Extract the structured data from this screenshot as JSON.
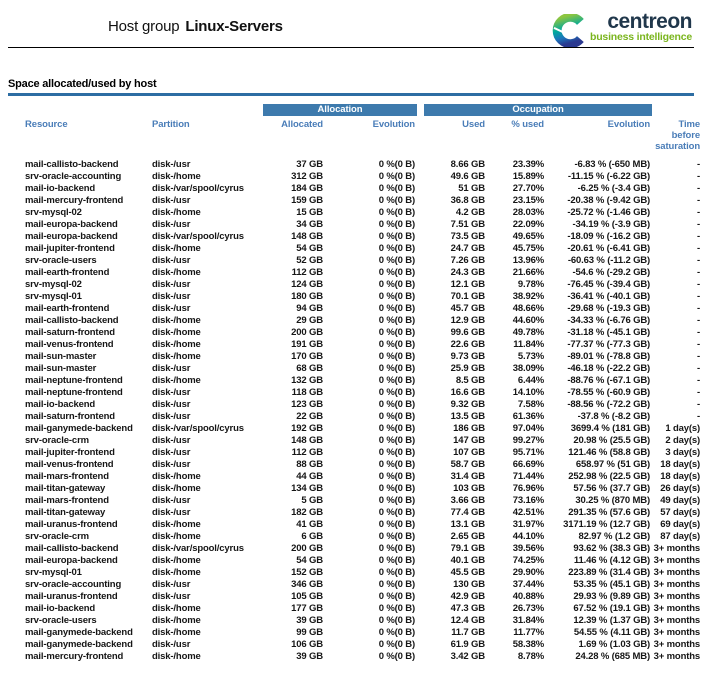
{
  "header": {
    "title_prefix": "Host group",
    "title_name": "Linux-Servers",
    "logo": {
      "brand": "centreon",
      "tagline": "business intelligence"
    }
  },
  "section": {
    "title": "Space allocated/used by host"
  },
  "table": {
    "groups": {
      "allocation": "Allocation",
      "occupation": "Occupation"
    },
    "columns": {
      "resource": "Resource",
      "partition": "Partition",
      "allocated": "Allocated",
      "allocation_evolution": "Evolution",
      "used": "Used",
      "pct_used": "% used",
      "occupation_evolution": "Evolution",
      "time_before_saturation": "Time before saturation"
    },
    "rows": [
      [
        "mail-callisto-backend",
        "disk-/usr",
        "37 GB",
        "0 %(0 B)",
        "8.66 GB",
        "23.39%",
        "-6.83 % (-650 MB)",
        "-"
      ],
      [
        "srv-oracle-accounting",
        "disk-/home",
        "312 GB",
        "0 %(0 B)",
        "49.6 GB",
        "15.89%",
        "-11.15 % (-6.22 GB)",
        "-"
      ],
      [
        "mail-io-backend",
        "disk-/var/spool/cyrus",
        "184 GB",
        "0 %(0 B)",
        "51 GB",
        "27.70%",
        "-6.25 % (-3.4 GB)",
        "-"
      ],
      [
        "mail-mercury-frontend",
        "disk-/usr",
        "159 GB",
        "0 %(0 B)",
        "36.8 GB",
        "23.15%",
        "-20.38 % (-9.42 GB)",
        "-"
      ],
      [
        "srv-mysql-02",
        "disk-/home",
        "15 GB",
        "0 %(0 B)",
        "4.2 GB",
        "28.03%",
        "-25.72 % (-1.46 GB)",
        "-"
      ],
      [
        "mail-europa-backend",
        "disk-/usr",
        "34 GB",
        "0 %(0 B)",
        "7.51 GB",
        "22.09%",
        "-34.19 % (-3.9 GB)",
        "-"
      ],
      [
        "mail-europa-backend",
        "disk-/var/spool/cyrus",
        "148 GB",
        "0 %(0 B)",
        "73.5 GB",
        "49.65%",
        "-18.09 % (-16.2 GB)",
        "-"
      ],
      [
        "mail-jupiter-frontend",
        "disk-/home",
        "54 GB",
        "0 %(0 B)",
        "24.7 GB",
        "45.75%",
        "-20.61 % (-6.41 GB)",
        "-"
      ],
      [
        "srv-oracle-users",
        "disk-/usr",
        "52 GB",
        "0 %(0 B)",
        "7.26 GB",
        "13.96%",
        "-60.63 % (-11.2 GB)",
        "-"
      ],
      [
        "mail-earth-frontend",
        "disk-/home",
        "112 GB",
        "0 %(0 B)",
        "24.3 GB",
        "21.66%",
        "-54.6 % (-29.2 GB)",
        "-"
      ],
      [
        "srv-mysql-02",
        "disk-/usr",
        "124 GB",
        "0 %(0 B)",
        "12.1 GB",
        "9.78%",
        "-76.45 % (-39.4 GB)",
        "-"
      ],
      [
        "srv-mysql-01",
        "disk-/usr",
        "180 GB",
        "0 %(0 B)",
        "70.1 GB",
        "38.92%",
        "-36.41 % (-40.1 GB)",
        "-"
      ],
      [
        "mail-earth-frontend",
        "disk-/usr",
        "94 GB",
        "0 %(0 B)",
        "45.7 GB",
        "48.66%",
        "-29.68 % (-19.3 GB)",
        "-"
      ],
      [
        "mail-callisto-backend",
        "disk-/home",
        "29 GB",
        "0 %(0 B)",
        "12.9 GB",
        "44.60%",
        "-34.33 % (-6.76 GB)",
        "-"
      ],
      [
        "mail-saturn-frontend",
        "disk-/home",
        "200 GB",
        "0 %(0 B)",
        "99.6 GB",
        "49.78%",
        "-31.18 % (-45.1 GB)",
        "-"
      ],
      [
        "mail-venus-frontend",
        "disk-/home",
        "191 GB",
        "0 %(0 B)",
        "22.6 GB",
        "11.84%",
        "-77.37 % (-77.3 GB)",
        "-"
      ],
      [
        "mail-sun-master",
        "disk-/home",
        "170 GB",
        "0 %(0 B)",
        "9.73 GB",
        "5.73%",
        "-89.01 % (-78.8 GB)",
        "-"
      ],
      [
        "mail-sun-master",
        "disk-/usr",
        "68 GB",
        "0 %(0 B)",
        "25.9 GB",
        "38.09%",
        "-46.18 % (-22.2 GB)",
        "-"
      ],
      [
        "mail-neptune-frontend",
        "disk-/home",
        "132 GB",
        "0 %(0 B)",
        "8.5 GB",
        "6.44%",
        "-88.76 % (-67.1 GB)",
        "-"
      ],
      [
        "mail-neptune-frontend",
        "disk-/usr",
        "118 GB",
        "0 %(0 B)",
        "16.6 GB",
        "14.10%",
        "-78.55 % (-60.9 GB)",
        "-"
      ],
      [
        "mail-io-backend",
        "disk-/usr",
        "123 GB",
        "0 %(0 B)",
        "9.32 GB",
        "7.58%",
        "-88.56 % (-72.2 GB)",
        "-"
      ],
      [
        "mail-saturn-frontend",
        "disk-/usr",
        "22 GB",
        "0 %(0 B)",
        "13.5 GB",
        "61.36%",
        "-37.8 % (-8.2 GB)",
        "-"
      ],
      [
        "mail-ganymede-backend",
        "disk-/var/spool/cyrus",
        "192 GB",
        "0 %(0 B)",
        "186 GB",
        "97.04%",
        "3699.4 % (181 GB)",
        "1 day(s)"
      ],
      [
        "srv-oracle-crm",
        "disk-/usr",
        "148 GB",
        "0 %(0 B)",
        "147 GB",
        "99.27%",
        "20.98 % (25.5 GB)",
        "2 day(s)"
      ],
      [
        "mail-jupiter-frontend",
        "disk-/usr",
        "112 GB",
        "0 %(0 B)",
        "107 GB",
        "95.71%",
        "121.46 % (58.8 GB)",
        "3 day(s)"
      ],
      [
        "mail-venus-frontend",
        "disk-/usr",
        "88 GB",
        "0 %(0 B)",
        "58.7 GB",
        "66.69%",
        "658.97 % (51 GB)",
        "18 day(s)"
      ],
      [
        "mail-mars-frontend",
        "disk-/home",
        "44 GB",
        "0 %(0 B)",
        "31.4 GB",
        "71.44%",
        "252.98 % (22.5 GB)",
        "18 day(s)"
      ],
      [
        "mail-titan-gateway",
        "disk-/home",
        "134 GB",
        "0 %(0 B)",
        "103 GB",
        "76.96%",
        "57.56 % (37.7 GB)",
        "26 day(s)"
      ],
      [
        "mail-mars-frontend",
        "disk-/usr",
        "5 GB",
        "0 %(0 B)",
        "3.66 GB",
        "73.16%",
        "30.25 % (870 MB)",
        "49 day(s)"
      ],
      [
        "mail-titan-gateway",
        "disk-/usr",
        "182 GB",
        "0 %(0 B)",
        "77.4 GB",
        "42.51%",
        "291.35 % (57.6 GB)",
        "57 day(s)"
      ],
      [
        "mail-uranus-frontend",
        "disk-/home",
        "41 GB",
        "0 %(0 B)",
        "13.1 GB",
        "31.97%",
        "3171.19 % (12.7 GB)",
        "69 day(s)"
      ],
      [
        "srv-oracle-crm",
        "disk-/home",
        "6 GB",
        "0 %(0 B)",
        "2.65 GB",
        "44.10%",
        "82.97 % (1.2 GB)",
        "87 day(s)"
      ],
      [
        "mail-callisto-backend",
        "disk-/var/spool/cyrus",
        "200 GB",
        "0 %(0 B)",
        "79.1 GB",
        "39.56%",
        "93.62 % (38.3 GB)",
        "3+ months"
      ],
      [
        "mail-europa-backend",
        "disk-/home",
        "54 GB",
        "0 %(0 B)",
        "40.1 GB",
        "74.25%",
        "11.46 % (4.12 GB)",
        "3+ months"
      ],
      [
        "srv-mysql-01",
        "disk-/home",
        "152 GB",
        "0 %(0 B)",
        "45.5 GB",
        "29.90%",
        "223.89 % (31.4 GB)",
        "3+ months"
      ],
      [
        "srv-oracle-accounting",
        "disk-/usr",
        "346 GB",
        "0 %(0 B)",
        "130 GB",
        "37.44%",
        "53.35 % (45.1 GB)",
        "3+ months"
      ],
      [
        "mail-uranus-frontend",
        "disk-/usr",
        "105 GB",
        "0 %(0 B)",
        "42.9 GB",
        "40.88%",
        "29.93 % (9.89 GB)",
        "3+ months"
      ],
      [
        "mail-io-backend",
        "disk-/home",
        "177 GB",
        "0 %(0 B)",
        "47.3 GB",
        "26.73%",
        "67.52 % (19.1 GB)",
        "3+ months"
      ],
      [
        "srv-oracle-users",
        "disk-/home",
        "39 GB",
        "0 %(0 B)",
        "12.4 GB",
        "31.84%",
        "12.39 % (1.37 GB)",
        "3+ months"
      ],
      [
        "mail-ganymede-backend",
        "disk-/home",
        "99 GB",
        "0 %(0 B)",
        "11.7 GB",
        "11.77%",
        "54.55 % (4.11 GB)",
        "3+ months"
      ],
      [
        "mail-ganymede-backend",
        "disk-/usr",
        "106 GB",
        "0 %(0 B)",
        "61.9 GB",
        "58.38%",
        "1.69 % (1.03 GB)",
        "3+ months"
      ],
      [
        "mail-mercury-frontend",
        "disk-/home",
        "39 GB",
        "0 %(0 B)",
        "3.42 GB",
        "8.78%",
        "24.28 % (685 MB)",
        "3+ months"
      ]
    ]
  },
  "colors": {
    "group_bar_blue": "#3d7aad",
    "column_header_blue": "#4a7db8",
    "section_rule_blue": "#2d6da3",
    "brand_navy": "#20374b",
    "brand_green": "#7ab51d"
  }
}
